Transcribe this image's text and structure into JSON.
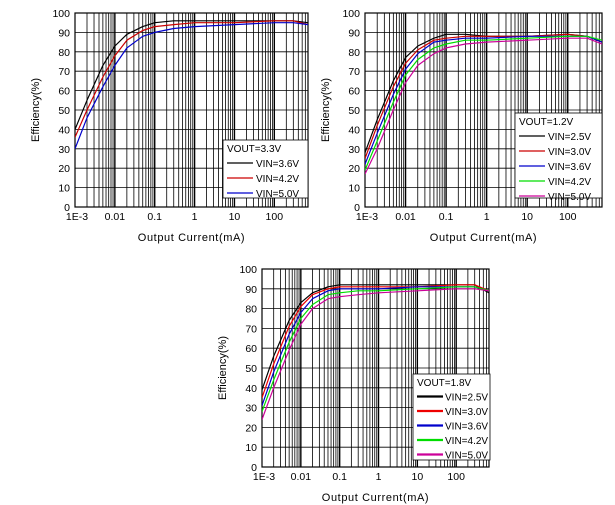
{
  "chart_data": [
    {
      "type": "line",
      "xscale": "log",
      "xlim": [
        0.001,
        700
      ],
      "ylim": [
        0,
        100
      ],
      "grid": true,
      "xlabel": "Output Current(mA)",
      "ylabel": "Efficiency(%)",
      "xtick_labels": [
        "1E-3",
        "0.01",
        "0.1",
        "1",
        "10",
        "100"
      ],
      "ytick_labels": [
        "0",
        "10",
        "20",
        "30",
        "40",
        "50",
        "60",
        "70",
        "80",
        "90",
        "100"
      ],
      "legend_title": "VOUT=3.3V",
      "legend_position": "bottom-right",
      "series": [
        {
          "name": "VIN=3.6V",
          "color": "#000000",
          "x": [
            0.001,
            0.002,
            0.005,
            0.01,
            0.02,
            0.05,
            0.1,
            0.3,
            1,
            10,
            100,
            300,
            700
          ],
          "y": [
            40,
            55,
            73,
            83,
            89,
            93,
            95,
            96,
            96,
            96,
            96,
            96,
            95
          ]
        },
        {
          "name": "VIN=4.2V",
          "color": "#cc0000",
          "x": [
            0.001,
            0.002,
            0.005,
            0.01,
            0.02,
            0.05,
            0.1,
            0.3,
            1,
            10,
            100,
            300,
            700
          ],
          "y": [
            36,
            50,
            67,
            78,
            86,
            91,
            93,
            94,
            95,
            95,
            96,
            96,
            94
          ]
        },
        {
          "name": "VIN=5.0V",
          "color": "#0000cc",
          "x": [
            0.001,
            0.002,
            0.005,
            0.01,
            0.02,
            0.05,
            0.1,
            0.3,
            1,
            10,
            100,
            300,
            700
          ],
          "y": [
            30,
            46,
            62,
            73,
            82,
            88,
            90,
            92,
            93,
            94,
            95,
            95,
            94
          ]
        }
      ]
    },
    {
      "type": "line",
      "xscale": "log",
      "xlim": [
        0.001,
        700
      ],
      "ylim": [
        0,
        100
      ],
      "grid": true,
      "xlabel": "Output Current(mA)",
      "ylabel": "Efficiency(%)",
      "xtick_labels": [
        "1E-3",
        "0.01",
        "0.1",
        "1",
        "10",
        "100"
      ],
      "ytick_labels": [
        "0",
        "10",
        "20",
        "30",
        "40",
        "50",
        "60",
        "70",
        "80",
        "90",
        "100"
      ],
      "legend_title": "VOUT=1.2V",
      "legend_position": "bottom-right",
      "series": [
        {
          "name": "VIN=2.5V",
          "color": "#000000",
          "x": [
            0.001,
            0.002,
            0.005,
            0.01,
            0.02,
            0.05,
            0.1,
            0.3,
            1,
            10,
            100,
            300,
            700
          ],
          "y": [
            28,
            45,
            65,
            77,
            83,
            87,
            89,
            89,
            88,
            88,
            89,
            88,
            85
          ]
        },
        {
          "name": "VIN=3.0V",
          "color": "#cc0000",
          "x": [
            0.001,
            0.002,
            0.005,
            0.01,
            0.02,
            0.05,
            0.1,
            0.3,
            1,
            10,
            100,
            300,
            700
          ],
          "y": [
            25,
            42,
            62,
            74,
            81,
            86,
            87,
            88,
            88,
            88,
            89,
            88,
            85
          ]
        },
        {
          "name": "VIN=3.6V",
          "color": "#0000cc",
          "x": [
            0.001,
            0.002,
            0.005,
            0.01,
            0.02,
            0.05,
            0.1,
            0.3,
            1,
            10,
            100,
            300,
            700
          ],
          "y": [
            22,
            38,
            58,
            71,
            79,
            85,
            86,
            87,
            87,
            88,
            88,
            88,
            85
          ]
        },
        {
          "name": "VIN=4.2V",
          "color": "#00dd00",
          "x": [
            0.001,
            0.002,
            0.005,
            0.01,
            0.02,
            0.05,
            0.1,
            0.3,
            1,
            10,
            100,
            300,
            700
          ],
          "y": [
            19,
            34,
            54,
            68,
            76,
            82,
            84,
            86,
            86,
            87,
            88,
            88,
            86
          ]
        },
        {
          "name": "VIN=5.0V",
          "color": "#cc0099",
          "x": [
            0.001,
            0.002,
            0.005,
            0.01,
            0.02,
            0.05,
            0.1,
            0.3,
            1,
            10,
            100,
            300,
            700
          ],
          "y": [
            17,
            30,
            50,
            64,
            73,
            79,
            82,
            84,
            85,
            86,
            87,
            87,
            84
          ]
        }
      ]
    },
    {
      "type": "line",
      "xscale": "log",
      "xlim": [
        0.001,
        700
      ],
      "ylim": [
        0,
        100
      ],
      "grid": true,
      "xlabel": "Output Current(mA)",
      "ylabel": "Efficiency(%)",
      "xtick_labels": [
        "1E-3",
        "0.01",
        "0.1",
        "1",
        "10",
        "100"
      ],
      "ytick_labels": [
        "0",
        "10",
        "20",
        "30",
        "40",
        "50",
        "60",
        "70",
        "80",
        "90",
        "100"
      ],
      "legend_title": "VOUT=1.8V",
      "legend_position": "bottom-right",
      "series": [
        {
          "name": "VIN=2.5V",
          "color": "#000000",
          "x": [
            0.001,
            0.002,
            0.005,
            0.01,
            0.02,
            0.05,
            0.1,
            0.3,
            1,
            10,
            100,
            300,
            700
          ],
          "y": [
            39,
            56,
            74,
            83,
            88,
            91,
            92,
            92,
            92,
            92,
            92,
            92,
            88
          ]
        },
        {
          "name": "VIN=3.0V",
          "color": "#ee0000",
          "x": [
            0.001,
            0.002,
            0.005,
            0.01,
            0.02,
            0.05,
            0.1,
            0.3,
            1,
            10,
            100,
            300,
            700
          ],
          "y": [
            35,
            52,
            71,
            81,
            87,
            90,
            91,
            91,
            91,
            91,
            92,
            92,
            89
          ]
        },
        {
          "name": "VIN=3.6V",
          "color": "#0000cc",
          "x": [
            0.001,
            0.002,
            0.005,
            0.01,
            0.02,
            0.05,
            0.1,
            0.3,
            1,
            10,
            100,
            300,
            700
          ],
          "y": [
            31,
            48,
            67,
            78,
            85,
            89,
            90,
            90,
            90,
            91,
            91,
            91,
            89
          ]
        },
        {
          "name": "VIN=4.2V",
          "color": "#00dd00",
          "x": [
            0.001,
            0.002,
            0.005,
            0.01,
            0.02,
            0.05,
            0.1,
            0.3,
            1,
            10,
            100,
            300,
            700
          ],
          "y": [
            28,
            44,
            63,
            75,
            82,
            87,
            88,
            89,
            89,
            90,
            91,
            91,
            89
          ]
        },
        {
          "name": "VIN=5.0V",
          "color": "#cc0099",
          "x": [
            0.001,
            0.002,
            0.005,
            0.01,
            0.02,
            0.05,
            0.1,
            0.3,
            1,
            10,
            100,
            300,
            700
          ],
          "y": [
            24,
            40,
            59,
            72,
            80,
            85,
            86,
            87,
            88,
            89,
            90,
            90,
            89
          ]
        }
      ]
    }
  ]
}
